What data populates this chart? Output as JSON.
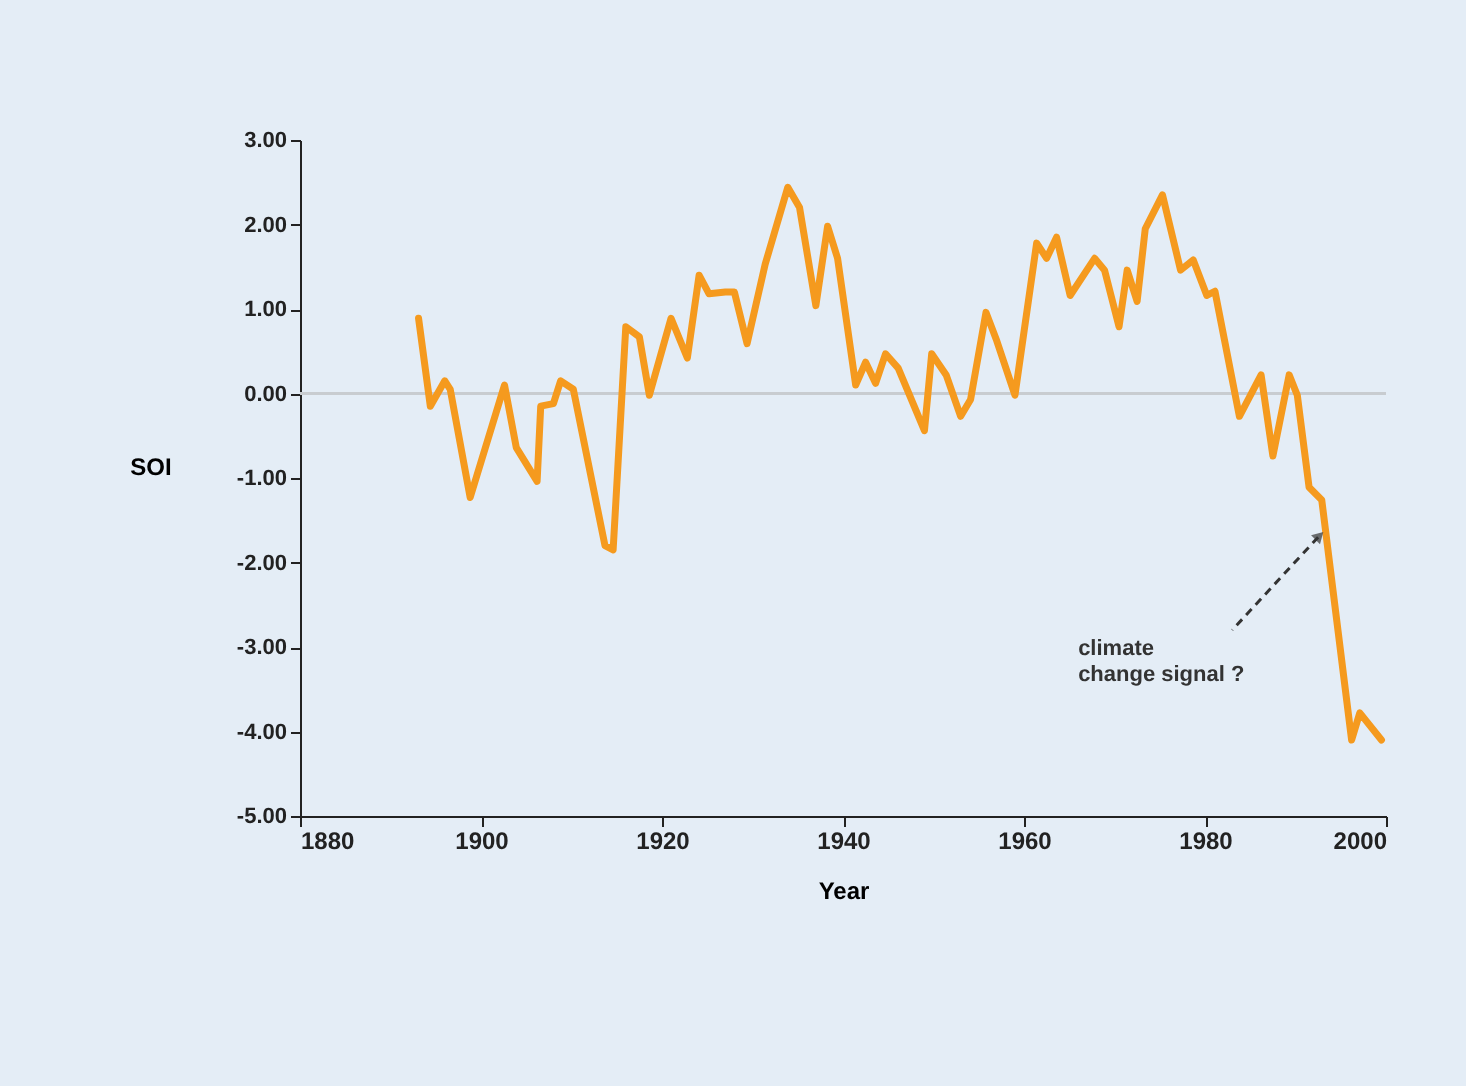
{
  "chart_data": {
    "type": "line",
    "xlabel": "Year",
    "ylabel": "SOI",
    "x": [
      1893.1,
      1894.4,
      1896,
      1896.6,
      1898.8,
      1902.6,
      1903.9,
      1906.2,
      1906.6,
      1908,
      1908.8,
      1910.2,
      1913.7,
      1914.6,
      1916,
      1917.5,
      1918.6,
      1921,
      1922.8,
      1924.1,
      1925.2,
      1927,
      1928,
      1929.4,
      1931.4,
      1933.9,
      1935.2,
      1937,
      1938.3,
      1939.4,
      1941.4,
      1942.5,
      1943.6,
      1944.7,
      1946.1,
      1949,
      1949.8,
      1951.4,
      1953,
      1954.1,
      1955.8,
      1957,
      1959,
      1961.4,
      1962.5,
      1963.6,
      1965.1,
      1967.8,
      1968.9,
      1970.5,
      1971.4,
      1972.5,
      1973.4,
      1975.3,
      1977.3,
      1978.7,
      1980.2,
      1981.1,
      1983.8,
      1986.2,
      1987.5,
      1989.3,
      1990.2,
      1991.5,
      1992.9,
      1996.2,
      1997.1,
      1999.5
    ],
    "series": [
      {
        "color": "#f59a1e",
        "values": [
          0.89,
          -0.15,
          0.15,
          0.05,
          -1.23,
          0.1,
          -0.64,
          -1.04,
          -0.15,
          -0.12,
          0.15,
          0.05,
          -1.8,
          -1.85,
          0.79,
          0.67,
          -0.02,
          0.89,
          0.42,
          1.4,
          1.18,
          1.2,
          1.2,
          0.59,
          1.53,
          2.44,
          2.2,
          1.04,
          1.98,
          1.6,
          0.1,
          0.37,
          0.12,
          0.47,
          0.3,
          -0.44,
          0.47,
          0.22,
          -0.27,
          -0.07,
          0.96,
          0.62,
          -0.02,
          1.78,
          1.6,
          1.85,
          1.16,
          1.6,
          1.46,
          0.79,
          1.46,
          1.09,
          1.95,
          2.35,
          1.46,
          1.58,
          1.16,
          1.21,
          -0.27,
          0.22,
          -0.74,
          0.22,
          -0.02,
          -1.11,
          -1.26,
          -4.1,
          -3.78,
          -4.1
        ]
      }
    ],
    "xlim": [
      1880,
      2000
    ],
    "xticks": [
      1880,
      1900,
      1920,
      1940,
      1960,
      1980,
      2000
    ],
    "ylim": [
      -5,
      3
    ],
    "yticks": [
      {
        "value": -5,
        "label": "-5.00"
      },
      {
        "value": -4,
        "label": "-4.00"
      },
      {
        "value": -3,
        "label": "-3.00"
      },
      {
        "value": -2,
        "label": "-2.00"
      },
      {
        "value": -1,
        "label": "-1.00"
      },
      {
        "value": 0,
        "label": "0.00"
      },
      {
        "value": 1,
        "label": "1.00"
      },
      {
        "value": 2,
        "label": "2.00"
      },
      {
        "value": 3,
        "label": "3.00"
      }
    ],
    "ref_lines": [
      {
        "axis": "y",
        "value": 0,
        "color": "#c8ccd0"
      }
    ],
    "annotations": [
      {
        "text": "climate\nchange signal ?",
        "x": 1992.5,
        "y": -1.7
      }
    ],
    "grid": false,
    "marker": "none",
    "line_style": "solid"
  }
}
